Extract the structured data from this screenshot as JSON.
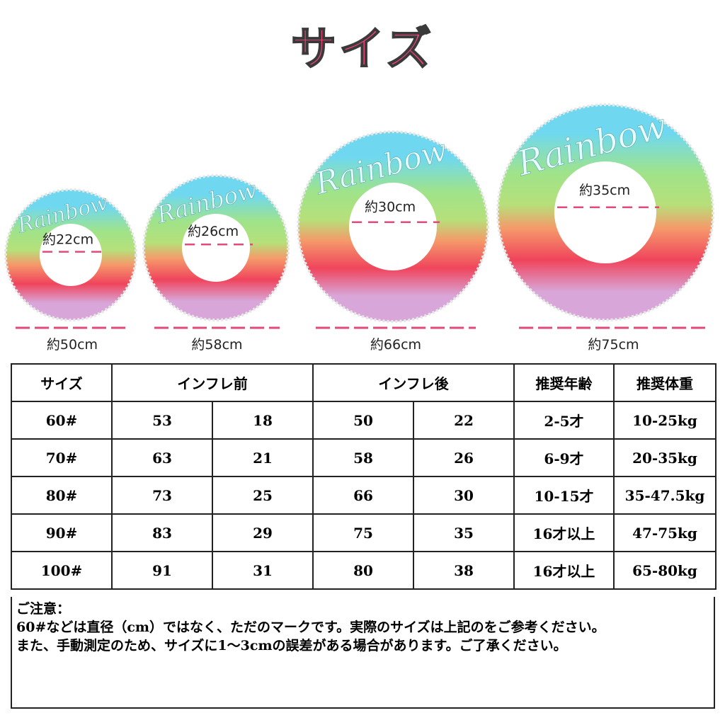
{
  "title": "サイズ",
  "ring_brand": "Rainbow",
  "rings": [
    {
      "inner": "約22cm",
      "outer": "約50cm"
    },
    {
      "inner": "約26cm",
      "outer": "約58cm"
    },
    {
      "inner": "約30cm",
      "outer": "約66cm"
    },
    {
      "inner": "約35cm",
      "outer": "約75cm"
    }
  ],
  "table": {
    "header": [
      "サイズ",
      "インフレ前",
      "インフレ後",
      "推奨年齢",
      "推奨体重"
    ],
    "rows": [
      [
        "60#",
        "53",
        "18",
        "50",
        "22",
        "2-5才",
        "10-25kg"
      ],
      [
        "70#",
        "63",
        "21",
        "58",
        "26",
        "6-9才",
        "20-35kg"
      ],
      [
        "80#",
        "73",
        "25",
        "66",
        "30",
        "10-15才",
        "35-47.5kg"
      ],
      [
        "90#",
        "83",
        "29",
        "75",
        "35",
        "16才以上",
        "47-75kg"
      ],
      [
        "100#",
        "91",
        "31",
        "80",
        "38",
        "16才以上",
        "65-80kg"
      ]
    ]
  },
  "notes": {
    "heading": "ご注意：",
    "lines": [
      "60#などは直径（cm）ではなく、ただのマークです。実際のサイズは上記のをご参考ください。",
      "また、手動測定のため、サイズに1～3cmの誤差がある場合があります。ご了承ください。"
    ]
  }
}
